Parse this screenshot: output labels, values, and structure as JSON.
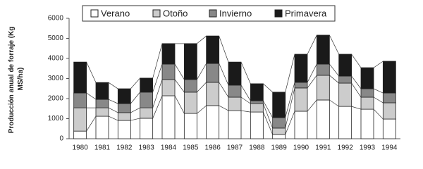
{
  "chart_data": {
    "type": "stacked_bar",
    "ylabel": [
      "Producción anual de forraje (Kg",
      "MS/ha)"
    ],
    "categories": [
      "1980",
      "1981",
      "1982",
      "1983",
      "1984",
      "1985",
      "1986",
      "1987",
      "1988",
      "1989",
      "1990",
      "1991",
      "1992",
      "1993",
      "1994"
    ],
    "series": [
      {
        "name": "Verano",
        "color": "#ffffff",
        "values": [
          380,
          1120,
          910,
          1020,
          2140,
          1260,
          1650,
          1400,
          1330,
          210,
          1370,
          1930,
          1610,
          1470,
          980
        ]
      },
      {
        "name": "Otoño",
        "color": "#cccccc",
        "values": [
          1160,
          420,
          390,
          520,
          810,
          1060,
          1160,
          670,
          420,
          320,
          1160,
          1230,
          1160,
          600,
          810
        ]
      },
      {
        "name": "Invierno",
        "color": "#888888",
        "values": [
          740,
          420,
          450,
          780,
          770,
          630,
          940,
          600,
          140,
          520,
          280,
          560,
          350,
          420,
          490
        ]
      },
      {
        "name": "Primavera",
        "color": "#1a1a1a",
        "values": [
          1540,
          840,
          740,
          700,
          1020,
          1790,
          1370,
          1150,
          850,
          1270,
          1400,
          1440,
          1090,
          1050,
          1580
        ]
      }
    ],
    "ylim": [
      0,
      6000
    ],
    "yticks": [
      0,
      1000,
      2000,
      3000,
      4000,
      5000,
      6000
    ],
    "grid": false,
    "legend": "top"
  }
}
